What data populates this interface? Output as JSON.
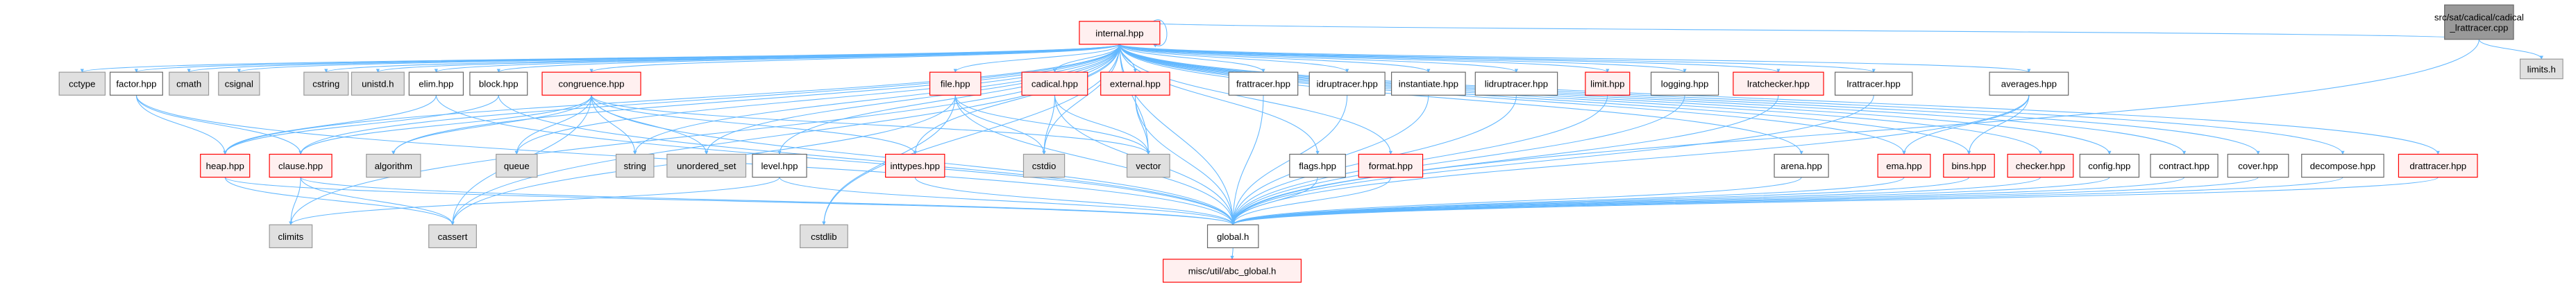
{
  "colors": {
    "edge": "#63b8ff",
    "root_fill": "#999999",
    "root_border": "#666666",
    "system_fill": "#e0e0e0",
    "system_border": "#999999",
    "local_fill": "#ffffff",
    "local_border": "#666666",
    "incomplete_fill": "#fff0f0",
    "incomplete_border": "#ff0000"
  },
  "nodes": [
    {
      "id": "root",
      "label": "src/sat/cadical/cadical\n_lrattracer.cpp",
      "kind": "root"
    },
    {
      "id": "limits.h",
      "label": "limits.h",
      "kind": "system"
    },
    {
      "id": "internal.hpp",
      "label": "internal.hpp",
      "kind": "incomplete"
    },
    {
      "id": "cctype",
      "label": "cctype",
      "kind": "system"
    },
    {
      "id": "factor.hpp",
      "label": "factor.hpp",
      "kind": "local"
    },
    {
      "id": "cmath",
      "label": "cmath",
      "kind": "system"
    },
    {
      "id": "csignal",
      "label": "csignal",
      "kind": "system"
    },
    {
      "id": "cstring",
      "label": "cstring",
      "kind": "system"
    },
    {
      "id": "unistd.h",
      "label": "unistd.h",
      "kind": "system"
    },
    {
      "id": "elim.hpp",
      "label": "elim.hpp",
      "kind": "local"
    },
    {
      "id": "block.hpp",
      "label": "block.hpp",
      "kind": "local"
    },
    {
      "id": "congruence.hpp",
      "label": "congruence.hpp",
      "kind": "incomplete"
    },
    {
      "id": "file.hpp",
      "label": "file.hpp",
      "kind": "incomplete"
    },
    {
      "id": "cadical.hpp",
      "label": "cadical.hpp",
      "kind": "incomplete"
    },
    {
      "id": "external.hpp",
      "label": "external.hpp",
      "kind": "incomplete"
    },
    {
      "id": "frattracer.hpp",
      "label": "frattracer.hpp",
      "kind": "local"
    },
    {
      "id": "idruptracer.hpp",
      "label": "idruptracer.hpp",
      "kind": "local"
    },
    {
      "id": "instantiate.hpp",
      "label": "instantiate.hpp",
      "kind": "local"
    },
    {
      "id": "lidruptracer.hpp",
      "label": "lidruptracer.hpp",
      "kind": "local"
    },
    {
      "id": "limit.hpp",
      "label": "limit.hpp",
      "kind": "incomplete"
    },
    {
      "id": "logging.hpp",
      "label": "logging.hpp",
      "kind": "local"
    },
    {
      "id": "lratchecker.hpp",
      "label": "lratchecker.hpp",
      "kind": "incomplete"
    },
    {
      "id": "lrattracer.hpp",
      "label": "lrattracer.hpp",
      "kind": "local"
    },
    {
      "id": "averages.hpp",
      "label": "averages.hpp",
      "kind": "local"
    },
    {
      "id": "heap.hpp",
      "label": "heap.hpp",
      "kind": "incomplete"
    },
    {
      "id": "clause.hpp",
      "label": "clause.hpp",
      "kind": "incomplete"
    },
    {
      "id": "algorithm",
      "label": "algorithm",
      "kind": "system"
    },
    {
      "id": "queue",
      "label": "queue",
      "kind": "system"
    },
    {
      "id": "string",
      "label": "string",
      "kind": "system"
    },
    {
      "id": "unordered_set",
      "label": "unordered_set",
      "kind": "system"
    },
    {
      "id": "level.hpp",
      "label": "level.hpp",
      "kind": "local"
    },
    {
      "id": "inttypes.hpp",
      "label": "inttypes.hpp",
      "kind": "incomplete"
    },
    {
      "id": "cstdio",
      "label": "cstdio",
      "kind": "system"
    },
    {
      "id": "vector",
      "label": "vector",
      "kind": "system"
    },
    {
      "id": "flags.hpp",
      "label": "flags.hpp",
      "kind": "local"
    },
    {
      "id": "format.hpp",
      "label": "format.hpp",
      "kind": "incomplete"
    },
    {
      "id": "arena.hpp",
      "label": "arena.hpp",
      "kind": "local"
    },
    {
      "id": "ema.hpp",
      "label": "ema.hpp",
      "kind": "incomplete"
    },
    {
      "id": "bins.hpp",
      "label": "bins.hpp",
      "kind": "incomplete"
    },
    {
      "id": "checker.hpp",
      "label": "checker.hpp",
      "kind": "incomplete"
    },
    {
      "id": "config.hpp",
      "label": "config.hpp",
      "kind": "local"
    },
    {
      "id": "contract.hpp",
      "label": "contract.hpp",
      "kind": "local"
    },
    {
      "id": "cover.hpp",
      "label": "cover.hpp",
      "kind": "local"
    },
    {
      "id": "decompose.hpp",
      "label": "decompose.hpp",
      "kind": "local"
    },
    {
      "id": "drattracer.hpp",
      "label": "drattracer.hpp",
      "kind": "incomplete"
    },
    {
      "id": "climits",
      "label": "climits",
      "kind": "system"
    },
    {
      "id": "cassert",
      "label": "cassert",
      "kind": "system"
    },
    {
      "id": "cstdlib",
      "label": "cstdlib",
      "kind": "system"
    },
    {
      "id": "global.h",
      "label": "global.h",
      "kind": "local"
    },
    {
      "id": "abc_global",
      "label": "misc/util/abc_global.h",
      "kind": "incomplete"
    }
  ],
  "edges": [
    [
      "root",
      "internal.hpp"
    ],
    [
      "root",
      "limits.h"
    ],
    [
      "root",
      "global.h"
    ],
    [
      "internal.hpp",
      "internal.hpp"
    ],
    [
      "internal.hpp",
      "cctype"
    ],
    [
      "internal.hpp",
      "factor.hpp"
    ],
    [
      "internal.hpp",
      "cmath"
    ],
    [
      "internal.hpp",
      "csignal"
    ],
    [
      "internal.hpp",
      "cstring"
    ],
    [
      "internal.hpp",
      "unistd.h"
    ],
    [
      "internal.hpp",
      "elim.hpp"
    ],
    [
      "internal.hpp",
      "block.hpp"
    ],
    [
      "internal.hpp",
      "congruence.hpp"
    ],
    [
      "internal.hpp",
      "file.hpp"
    ],
    [
      "internal.hpp",
      "cadical.hpp"
    ],
    [
      "internal.hpp",
      "external.hpp"
    ],
    [
      "internal.hpp",
      "frattracer.hpp"
    ],
    [
      "internal.hpp",
      "idruptracer.hpp"
    ],
    [
      "internal.hpp",
      "instantiate.hpp"
    ],
    [
      "internal.hpp",
      "lidruptracer.hpp"
    ],
    [
      "internal.hpp",
      "limit.hpp"
    ],
    [
      "internal.hpp",
      "logging.hpp"
    ],
    [
      "internal.hpp",
      "lratchecker.hpp"
    ],
    [
      "internal.hpp",
      "lrattracer.hpp"
    ],
    [
      "internal.hpp",
      "averages.hpp"
    ],
    [
      "internal.hpp",
      "heap.hpp"
    ],
    [
      "internal.hpp",
      "clause.hpp"
    ],
    [
      "internal.hpp",
      "algorithm"
    ],
    [
      "internal.hpp",
      "queue"
    ],
    [
      "internal.hpp",
      "string"
    ],
    [
      "internal.hpp",
      "unordered_set"
    ],
    [
      "internal.hpp",
      "level.hpp"
    ],
    [
      "internal.hpp",
      "inttypes.hpp"
    ],
    [
      "internal.hpp",
      "cstdio"
    ],
    [
      "internal.hpp",
      "vector"
    ],
    [
      "internal.hpp",
      "flags.hpp"
    ],
    [
      "internal.hpp",
      "format.hpp"
    ],
    [
      "internal.hpp",
      "arena.hpp"
    ],
    [
      "internal.hpp",
      "ema.hpp"
    ],
    [
      "internal.hpp",
      "bins.hpp"
    ],
    [
      "internal.hpp",
      "checker.hpp"
    ],
    [
      "internal.hpp",
      "config.hpp"
    ],
    [
      "internal.hpp",
      "contract.hpp"
    ],
    [
      "internal.hpp",
      "cover.hpp"
    ],
    [
      "internal.hpp",
      "decompose.hpp"
    ],
    [
      "internal.hpp",
      "drattracer.hpp"
    ],
    [
      "internal.hpp",
      "climits"
    ],
    [
      "internal.hpp",
      "cassert"
    ],
    [
      "internal.hpp",
      "cstdlib"
    ],
    [
      "internal.hpp",
      "global.h"
    ],
    [
      "factor.hpp",
      "heap.hpp"
    ],
    [
      "factor.hpp",
      "clause.hpp"
    ],
    [
      "factor.hpp",
      "global.h"
    ],
    [
      "elim.hpp",
      "heap.hpp"
    ],
    [
      "elim.hpp",
      "global.h"
    ],
    [
      "block.hpp",
      "heap.hpp"
    ],
    [
      "block.hpp",
      "global.h"
    ],
    [
      "congruence.hpp",
      "clause.hpp"
    ],
    [
      "congruence.hpp",
      "algorithm"
    ],
    [
      "congruence.hpp",
      "queue"
    ],
    [
      "congruence.hpp",
      "string"
    ],
    [
      "congruence.hpp",
      "unordered_set"
    ],
    [
      "congruence.hpp",
      "cassert"
    ],
    [
      "congruence.hpp",
      "inttypes.hpp"
    ],
    [
      "congruence.hpp",
      "vector"
    ],
    [
      "congruence.hpp",
      "global.h"
    ],
    [
      "file.hpp",
      "cstdio"
    ],
    [
      "file.hpp",
      "vector"
    ],
    [
      "file.hpp",
      "cstdlib"
    ],
    [
      "file.hpp",
      "cassert"
    ],
    [
      "file.hpp",
      "global.h"
    ],
    [
      "cadical.hpp",
      "cstdio"
    ],
    [
      "cadical.hpp",
      "vector"
    ],
    [
      "cadical.hpp",
      "global.h"
    ],
    [
      "external.hpp",
      "vector"
    ],
    [
      "external.hpp",
      "global.h"
    ],
    [
      "frattracer.hpp",
      "global.h"
    ],
    [
      "idruptracer.hpp",
      "global.h"
    ],
    [
      "instantiate.hpp",
      "global.h"
    ],
    [
      "lidruptracer.hpp",
      "global.h"
    ],
    [
      "limit.hpp",
      "global.h"
    ],
    [
      "logging.hpp",
      "global.h"
    ],
    [
      "lratchecker.hpp",
      "global.h"
    ],
    [
      "lrattracer.hpp",
      "global.h"
    ],
    [
      "averages.hpp",
      "ema.hpp"
    ],
    [
      "averages.hpp",
      "bins.hpp"
    ],
    [
      "averages.hpp",
      "global.h"
    ],
    [
      "heap.hpp",
      "cassert"
    ],
    [
      "heap.hpp",
      "global.h"
    ],
    [
      "clause.hpp",
      "climits"
    ],
    [
      "clause.hpp",
      "cassert"
    ],
    [
      "clause.hpp",
      "global.h"
    ],
    [
      "level.hpp",
      "climits"
    ],
    [
      "level.hpp",
      "global.h"
    ],
    [
      "inttypes.hpp",
      "global.h"
    ],
    [
      "flags.hpp",
      "global.h"
    ],
    [
      "format.hpp",
      "global.h"
    ],
    [
      "arena.hpp",
      "global.h"
    ],
    [
      "ema.hpp",
      "global.h"
    ],
    [
      "bins.hpp",
      "global.h"
    ],
    [
      "checker.hpp",
      "global.h"
    ],
    [
      "config.hpp",
      "global.h"
    ],
    [
      "contract.hpp",
      "global.h"
    ],
    [
      "cover.hpp",
      "global.h"
    ],
    [
      "decompose.hpp",
      "global.h"
    ],
    [
      "drattracer.hpp",
      "global.h"
    ],
    [
      "global.h",
      "abc_global"
    ]
  ]
}
